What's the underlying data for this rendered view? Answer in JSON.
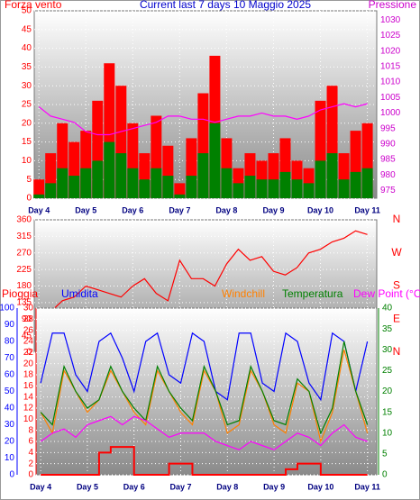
{
  "chart_data": [
    {
      "type": "bar",
      "title": "Current last 7 days 10 Maggio 2025",
      "ylabel": "Forza vento",
      "y2label": "Pressione",
      "x": [
        4,
        4.25,
        4.5,
        4.75,
        5,
        5.25,
        5.5,
        5.75,
        6,
        6.25,
        6.5,
        6.75,
        7,
        7.25,
        7.5,
        7.75,
        8,
        8.25,
        8.5,
        8.75,
        9,
        9.25,
        9.5,
        9.75,
        10,
        10.25,
        10.5,
        10.75,
        11
      ],
      "xlim": [
        3.9,
        11.2
      ],
      "xticks": [
        {
          "value": 4,
          "label": "Day 4"
        },
        {
          "value": 5,
          "label": "Day 5"
        },
        {
          "value": 6,
          "label": "Day 6"
        },
        {
          "value": 7,
          "label": "Day 7"
        },
        {
          "value": 8,
          "label": "Day 8"
        },
        {
          "value": 9,
          "label": "Day 9"
        },
        {
          "value": 10,
          "label": "Day 10"
        },
        {
          "value": 11,
          "label": "Day 11"
        }
      ],
      "ylim": [
        0,
        50
      ],
      "yticks": [
        0,
        5,
        10,
        15,
        20,
        25,
        30,
        35,
        40,
        45,
        50
      ],
      "y2lim": [
        972.5,
        1033
      ],
      "y2ticks": [
        975,
        980,
        985,
        990,
        995,
        1000,
        1005,
        1010,
        1015,
        1020,
        1025,
        1030
      ],
      "ycolor": "#ff0000",
      "y2color": "#cc00cc",
      "grid": true,
      "series": [
        {
          "color": "#ff0000",
          "values": [
            5,
            12,
            20,
            15,
            18,
            26,
            36,
            30,
            20,
            12,
            22,
            14,
            4,
            16,
            28,
            38,
            16,
            8,
            12,
            10,
            12,
            16,
            10,
            8,
            26,
            30,
            12,
            18,
            20
          ]
        },
        {
          "color": "#008000",
          "values": [
            1,
            4,
            8,
            6,
            8,
            10,
            15,
            12,
            8,
            5,
            8,
            6,
            1,
            6,
            12,
            20,
            8,
            4,
            6,
            5,
            5,
            7,
            5,
            4,
            10,
            12,
            5,
            7,
            8
          ]
        },
        {
          "color": "#ff00ff",
          "axis": "y2",
          "style": "line",
          "values": [
            1002,
            999,
            998,
            997,
            994,
            993,
            993,
            994,
            995,
            996,
            997,
            999,
            999,
            998,
            998,
            997,
            998,
            999,
            999,
            1000,
            999,
            999,
            998,
            999,
            1001,
            1002,
            1003,
            1002,
            1003
          ]
        }
      ]
    },
    {
      "type": "line",
      "x": [
        4,
        4.25,
        4.5,
        4.75,
        5,
        5.25,
        5.5,
        5.75,
        6,
        6.25,
        6.5,
        6.75,
        7,
        7.25,
        7.5,
        7.75,
        8,
        8.25,
        8.5,
        8.75,
        9,
        9.25,
        9.5,
        9.75,
        10,
        10.25,
        10.5,
        10.75,
        11
      ],
      "xlim": [
        3.9,
        11.2
      ],
      "ylim": [
        0,
        360
      ],
      "yticks": [
        0,
        45,
        90,
        135,
        180,
        225,
        270,
        315,
        360
      ],
      "y2lim": [
        0,
        360
      ],
      "y2ticks": [
        {
          "value": 360,
          "label": "N"
        },
        {
          "value": 270,
          "label": "W"
        },
        {
          "value": 180,
          "label": "S"
        },
        {
          "value": 90,
          "label": "E"
        },
        {
          "value": 0,
          "label": "N"
        }
      ],
      "ycolor": "#ff0000",
      "y2color": "#ff0000",
      "grid": true,
      "series": [
        {
          "color": "#ff0000",
          "values": [
            120,
            110,
            140,
            150,
            180,
            170,
            160,
            150,
            180,
            200,
            160,
            140,
            250,
            200,
            200,
            180,
            240,
            280,
            250,
            260,
            220,
            210,
            230,
            270,
            280,
            300,
            310,
            330,
            320
          ]
        }
      ]
    },
    {
      "type": "line",
      "x": [
        4,
        4.25,
        4.5,
        4.75,
        5,
        5.25,
        5.5,
        5.75,
        6,
        6.25,
        6.5,
        6.75,
        7,
        7.25,
        7.5,
        7.75,
        8,
        8.25,
        8.5,
        8.75,
        9,
        9.25,
        9.5,
        9.75,
        10,
        10.25,
        10.5,
        10.75,
        11
      ],
      "xlim": [
        3.9,
        11.2
      ],
      "xticks": [
        {
          "value": 4,
          "label": "Day 4"
        },
        {
          "value": 5,
          "label": "Day 5"
        },
        {
          "value": 6,
          "label": "Day 6"
        },
        {
          "value": 7,
          "label": "Day 7"
        },
        {
          "value": 8,
          "label": "Day 8"
        },
        {
          "value": 9,
          "label": "Day 9"
        },
        {
          "value": 10,
          "label": "Day 10"
        },
        {
          "value": 11,
          "label": "Day 11"
        }
      ],
      "ylim": [
        0,
        30
      ],
      "yticks": [
        0,
        2,
        4,
        6,
        8,
        10,
        12,
        14,
        16,
        18,
        20,
        22,
        24,
        26,
        28,
        30
      ],
      "y2lim": [
        0,
        40
      ],
      "y2ticks": [
        0,
        5,
        10,
        15,
        20,
        25,
        30,
        35,
        40
      ],
      "y3lim": [
        0,
        100
      ],
      "y3ticks": [
        0,
        10,
        20,
        30,
        40,
        50,
        60,
        70,
        80,
        90,
        100
      ],
      "ycolor": "#ff0000",
      "y2color": "#008000",
      "y3color": "#0000ff",
      "grid": true,
      "series": [
        {
          "name": "Pioggia",
          "color": "#ff0000",
          "style": "step",
          "values": [
            0,
            0,
            0,
            0,
            0,
            4,
            5,
            5,
            0,
            0,
            0,
            2,
            2,
            0,
            0,
            0,
            0,
            0,
            0,
            0,
            0,
            1,
            2,
            2,
            0,
            0,
            0,
            0,
            0
          ]
        },
        {
          "name": "Umidita",
          "color": "#0000ff",
          "axis": "y3",
          "values": [
            55,
            85,
            85,
            60,
            50,
            80,
            85,
            70,
            50,
            80,
            85,
            60,
            55,
            85,
            80,
            50,
            45,
            85,
            85,
            55,
            50,
            85,
            80,
            55,
            45,
            85,
            80,
            50,
            80
          ]
        },
        {
          "name": "Windchill",
          "color": "#ff8000",
          "axis": "y2",
          "values": [
            15,
            10,
            25,
            20,
            15,
            18,
            25,
            20,
            15,
            12,
            25,
            20,
            15,
            12,
            25,
            20,
            10,
            12,
            25,
            20,
            12,
            10,
            22,
            20,
            8,
            15,
            30,
            20,
            10
          ]
        },
        {
          "name": "Temperatura",
          "color": "#008000",
          "axis": "y2",
          "values": [
            15,
            12,
            26,
            20,
            16,
            18,
            26,
            20,
            16,
            13,
            26,
            20,
            16,
            13,
            26,
            20,
            12,
            13,
            26,
            20,
            13,
            12,
            23,
            20,
            10,
            16,
            32,
            20,
            12
          ]
        },
        {
          "name": "Dew Point (°C)",
          "color": "#ff00ff",
          "axis": "y2",
          "values": [
            8,
            10,
            11,
            9,
            12,
            13,
            14,
            12,
            14,
            13,
            11,
            9,
            10,
            10,
            10,
            8,
            7,
            6,
            8,
            7,
            6,
            8,
            10,
            9,
            7,
            10,
            12,
            9,
            8
          ]
        }
      ]
    }
  ]
}
